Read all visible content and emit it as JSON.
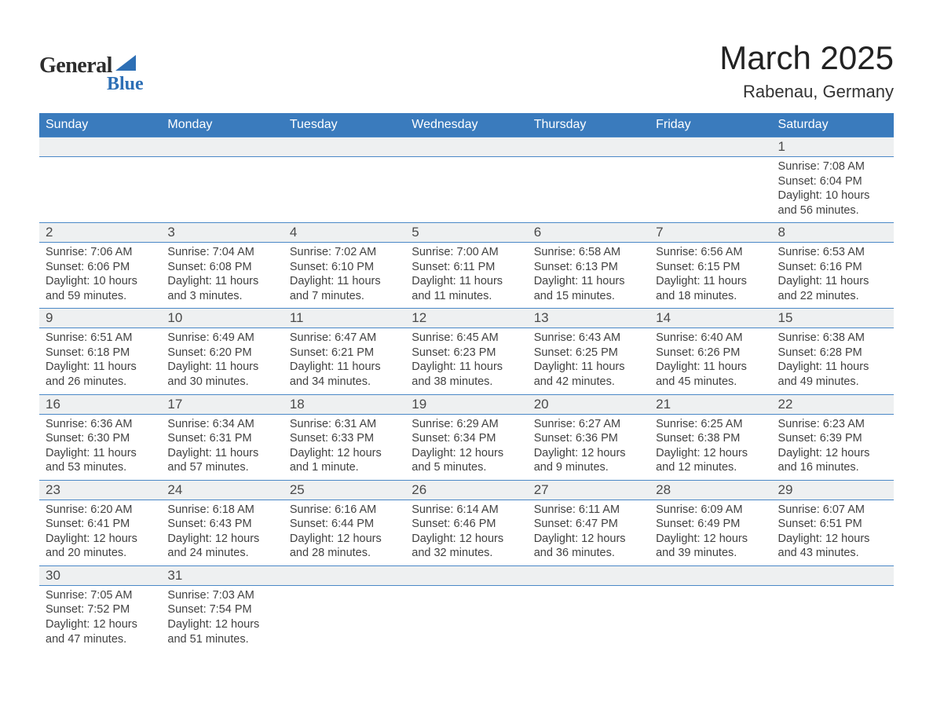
{
  "logo": {
    "word1": "General",
    "word2": "Blue"
  },
  "title": "March 2025",
  "location": "Rabenau, Germany",
  "colors": {
    "header_bg": "#3a7bbd",
    "row_sep": "#4a88c7",
    "daynum_bg": "#eef0f1",
    "text": "#333333",
    "accent": "#2d6fb5"
  },
  "weekdays": [
    "Sunday",
    "Monday",
    "Tuesday",
    "Wednesday",
    "Thursday",
    "Friday",
    "Saturday"
  ],
  "weeks": [
    [
      null,
      null,
      null,
      null,
      null,
      null,
      {
        "n": "1",
        "sunrise": "7:08 AM",
        "sunset": "6:04 PM",
        "daylight": "10 hours and 56 minutes."
      }
    ],
    [
      {
        "n": "2",
        "sunrise": "7:06 AM",
        "sunset": "6:06 PM",
        "daylight": "10 hours and 59 minutes."
      },
      {
        "n": "3",
        "sunrise": "7:04 AM",
        "sunset": "6:08 PM",
        "daylight": "11 hours and 3 minutes."
      },
      {
        "n": "4",
        "sunrise": "7:02 AM",
        "sunset": "6:10 PM",
        "daylight": "11 hours and 7 minutes."
      },
      {
        "n": "5",
        "sunrise": "7:00 AM",
        "sunset": "6:11 PM",
        "daylight": "11 hours and 11 minutes."
      },
      {
        "n": "6",
        "sunrise": "6:58 AM",
        "sunset": "6:13 PM",
        "daylight": "11 hours and 15 minutes."
      },
      {
        "n": "7",
        "sunrise": "6:56 AM",
        "sunset": "6:15 PM",
        "daylight": "11 hours and 18 minutes."
      },
      {
        "n": "8",
        "sunrise": "6:53 AM",
        "sunset": "6:16 PM",
        "daylight": "11 hours and 22 minutes."
      }
    ],
    [
      {
        "n": "9",
        "sunrise": "6:51 AM",
        "sunset": "6:18 PM",
        "daylight": "11 hours and 26 minutes."
      },
      {
        "n": "10",
        "sunrise": "6:49 AM",
        "sunset": "6:20 PM",
        "daylight": "11 hours and 30 minutes."
      },
      {
        "n": "11",
        "sunrise": "6:47 AM",
        "sunset": "6:21 PM",
        "daylight": "11 hours and 34 minutes."
      },
      {
        "n": "12",
        "sunrise": "6:45 AM",
        "sunset": "6:23 PM",
        "daylight": "11 hours and 38 minutes."
      },
      {
        "n": "13",
        "sunrise": "6:43 AM",
        "sunset": "6:25 PM",
        "daylight": "11 hours and 42 minutes."
      },
      {
        "n": "14",
        "sunrise": "6:40 AM",
        "sunset": "6:26 PM",
        "daylight": "11 hours and 45 minutes."
      },
      {
        "n": "15",
        "sunrise": "6:38 AM",
        "sunset": "6:28 PM",
        "daylight": "11 hours and 49 minutes."
      }
    ],
    [
      {
        "n": "16",
        "sunrise": "6:36 AM",
        "sunset": "6:30 PM",
        "daylight": "11 hours and 53 minutes."
      },
      {
        "n": "17",
        "sunrise": "6:34 AM",
        "sunset": "6:31 PM",
        "daylight": "11 hours and 57 minutes."
      },
      {
        "n": "18",
        "sunrise": "6:31 AM",
        "sunset": "6:33 PM",
        "daylight": "12 hours and 1 minute."
      },
      {
        "n": "19",
        "sunrise": "6:29 AM",
        "sunset": "6:34 PM",
        "daylight": "12 hours and 5 minutes."
      },
      {
        "n": "20",
        "sunrise": "6:27 AM",
        "sunset": "6:36 PM",
        "daylight": "12 hours and 9 minutes."
      },
      {
        "n": "21",
        "sunrise": "6:25 AM",
        "sunset": "6:38 PM",
        "daylight": "12 hours and 12 minutes."
      },
      {
        "n": "22",
        "sunrise": "6:23 AM",
        "sunset": "6:39 PM",
        "daylight": "12 hours and 16 minutes."
      }
    ],
    [
      {
        "n": "23",
        "sunrise": "6:20 AM",
        "sunset": "6:41 PM",
        "daylight": "12 hours and 20 minutes."
      },
      {
        "n": "24",
        "sunrise": "6:18 AM",
        "sunset": "6:43 PM",
        "daylight": "12 hours and 24 minutes."
      },
      {
        "n": "25",
        "sunrise": "6:16 AM",
        "sunset": "6:44 PM",
        "daylight": "12 hours and 28 minutes."
      },
      {
        "n": "26",
        "sunrise": "6:14 AM",
        "sunset": "6:46 PM",
        "daylight": "12 hours and 32 minutes."
      },
      {
        "n": "27",
        "sunrise": "6:11 AM",
        "sunset": "6:47 PM",
        "daylight": "12 hours and 36 minutes."
      },
      {
        "n": "28",
        "sunrise": "6:09 AM",
        "sunset": "6:49 PM",
        "daylight": "12 hours and 39 minutes."
      },
      {
        "n": "29",
        "sunrise": "6:07 AM",
        "sunset": "6:51 PM",
        "daylight": "12 hours and 43 minutes."
      }
    ],
    [
      {
        "n": "30",
        "sunrise": "7:05 AM",
        "sunset": "7:52 PM",
        "daylight": "12 hours and 47 minutes."
      },
      {
        "n": "31",
        "sunrise": "7:03 AM",
        "sunset": "7:54 PM",
        "daylight": "12 hours and 51 minutes."
      },
      null,
      null,
      null,
      null,
      null
    ]
  ],
  "labels": {
    "sunrise": "Sunrise:",
    "sunset": "Sunset:",
    "daylight": "Daylight:"
  }
}
